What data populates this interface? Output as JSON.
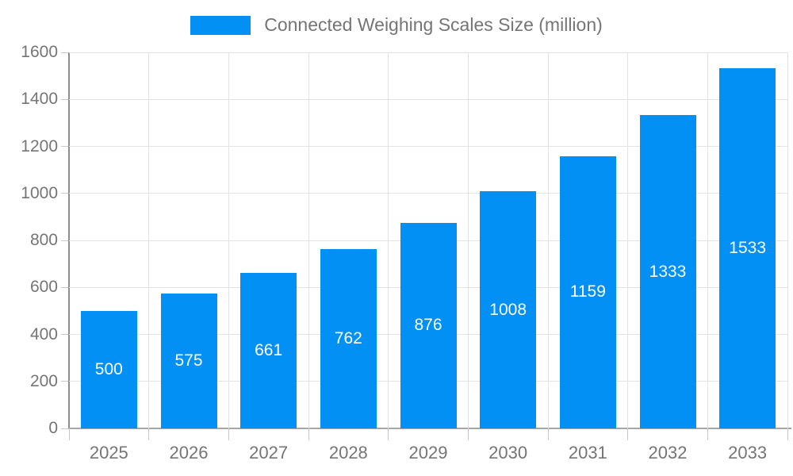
{
  "colors": {
    "bar": "#0390F5",
    "bar_label": "#ffffff",
    "axis_text": "#757575",
    "grid": "#e3e3e3",
    "axis_line": "#8c8c8c"
  },
  "legend": {
    "label": "Connected Weighing Scales Size (million)"
  },
  "chart_data": {
    "type": "bar",
    "title": "Connected Weighing Scales Size (million)",
    "categories": [
      "2025",
      "2026",
      "2027",
      "2028",
      "2029",
      "2030",
      "2031",
      "2032",
      "2033"
    ],
    "values": [
      500,
      575,
      661,
      762,
      876,
      1008,
      1159,
      1333,
      1533
    ],
    "xlabel": "",
    "ylabel": "",
    "ylim": [
      0,
      1600
    ],
    "ytick_step": 200,
    "ytick_labels": [
      "0",
      "200",
      "400",
      "600",
      "800",
      "1000",
      "1200",
      "1400",
      "1600"
    ],
    "grid": true,
    "legend_position": "top-center",
    "bar_value_labels_inside": true
  }
}
